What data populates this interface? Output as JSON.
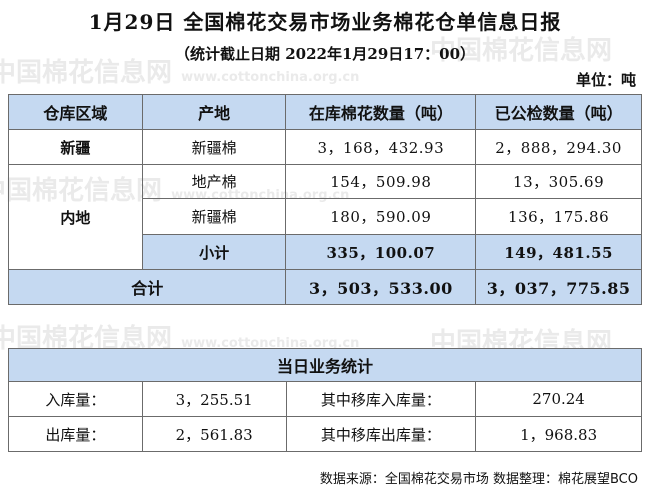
{
  "title": "1月29日 全国棉花交易市场业务棉花仓单信息日报",
  "subtitle": "（统计截止日期 2022年1月29日17：00）",
  "unit": "单位：吨",
  "main": {
    "headers": [
      "仓库区域",
      "产地",
      "在库棉花数量（吨）",
      "已公检数量（吨）"
    ],
    "xinjiang": {
      "region": "新疆",
      "origin": "新疆棉",
      "stock": "3，168，432.93",
      "inspected": "2，888，294.30"
    },
    "inland": {
      "region": "内地",
      "rows": [
        {
          "origin": "地产棉",
          "stock": "154，509.98",
          "inspected": "13，305.69"
        },
        {
          "origin": "新疆棉",
          "stock": "180，590.09",
          "inspected": "136，175.86"
        }
      ],
      "subtotal_label": "小计",
      "subtotal_stock": "335，100.07",
      "subtotal_inspected": "149，481.55"
    },
    "total_label": "合计",
    "total_stock": "3，503，533.00",
    "total_inspected": "3，037，775.85"
  },
  "daily": {
    "header": "当日业务统计",
    "rows": [
      {
        "label1": "入库量：",
        "value1": "3，255.51",
        "label2": "其中移库入库量：",
        "value2": "270.24"
      },
      {
        "label1": "出库量：",
        "value1": "2，561.83",
        "label2": "其中移库出库量：",
        "value2": "1，968.83"
      }
    ]
  },
  "footer": "数据来源：全国棉花交易市场 数据整理：棉花展望BCO",
  "watermark": {
    "text": "中国棉花信息网",
    "url": "www.cottonchina.org.cn"
  }
}
